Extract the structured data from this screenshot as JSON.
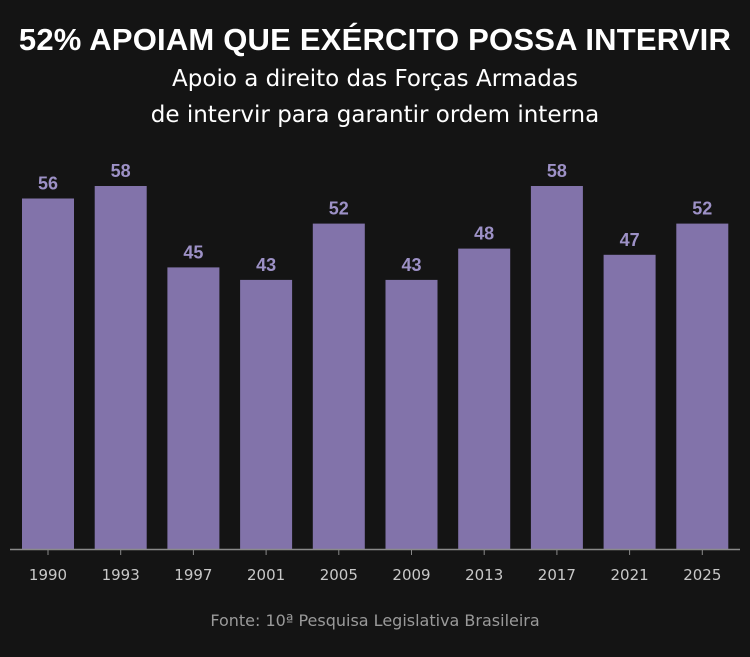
{
  "header": {
    "title": "52% APOIAM QUE EXÉRCITO POSSA INTERVIR",
    "subtitle_line1": "Apoio a direito das Forças Armadas",
    "subtitle_line2": "de intervir para garantir ordem interna"
  },
  "footer": {
    "source": "Fonte: 10ª Pesquisa Legislativa Brasileira"
  },
  "colors": {
    "background": "#141414",
    "bar": "#8273AA",
    "value_label": "#9D91C6",
    "axis": "#8a8a8a",
    "tick_label": "#c8c8c8"
  },
  "chart_data": {
    "type": "bar",
    "categories": [
      "1990",
      "1993",
      "1997",
      "2001",
      "2005",
      "2009",
      "2013",
      "2017",
      "2021",
      "2025"
    ],
    "values": [
      56,
      58,
      45,
      43,
      52,
      43,
      48,
      58,
      47,
      52
    ],
    "ylim": [
      0,
      58
    ],
    "grid": false,
    "legend": "none",
    "data_labels": true
  }
}
